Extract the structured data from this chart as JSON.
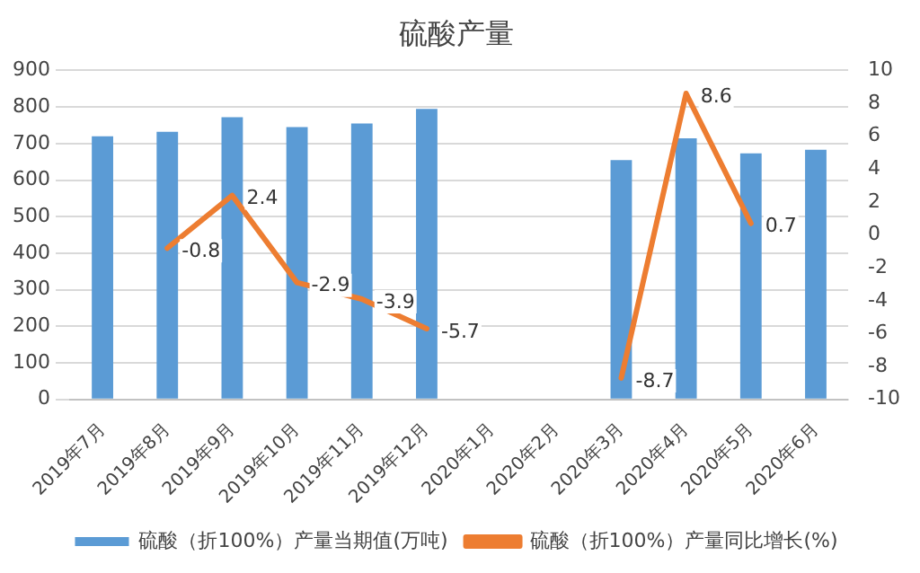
{
  "chart_data": {
    "type": "bar",
    "title": "硫酸产量",
    "categories": [
      "2019年7月",
      "2019年8月",
      "2019年9月",
      "2019年10月",
      "2019年11月",
      "2019年12月",
      "2020年1月",
      "2020年2月",
      "2020年3月",
      "2020年4月",
      "2020年5月",
      "2020年6月"
    ],
    "series": [
      {
        "name": "硫酸（折100%）产量当期值(万吨)",
        "color": "#5b9bd5",
        "values": [
          720,
          732,
          772,
          745,
          755,
          795,
          null,
          null,
          655,
          714,
          673,
          683
        ]
      },
      {
        "name": "硫酸（折100%）产量同比增长(%)",
        "color": "#ed7d31",
        "type": "line",
        "axis": "y2",
        "values": [
          null,
          -0.8,
          2.4,
          -2.9,
          -3.9,
          -5.7,
          null,
          null,
          -8.7,
          8.6,
          0.7,
          null
        ],
        "value_labels": [
          null,
          "-0.8",
          "2.4",
          "-2.9",
          "-3.9",
          "-5.7",
          null,
          null,
          "-8.7",
          "8.6",
          "0.7",
          null
        ]
      }
    ],
    "ylim": [
      0,
      900
    ],
    "yticks": [
      0,
      100,
      200,
      300,
      400,
      500,
      600,
      700,
      800,
      900
    ],
    "y2lim": [
      -10,
      10
    ],
    "y2ticks": [
      -10,
      -8,
      -6,
      -4,
      -2,
      0,
      2,
      4,
      6,
      8,
      10
    ],
    "grid": "y",
    "legend": "bottom",
    "marker": "none"
  }
}
